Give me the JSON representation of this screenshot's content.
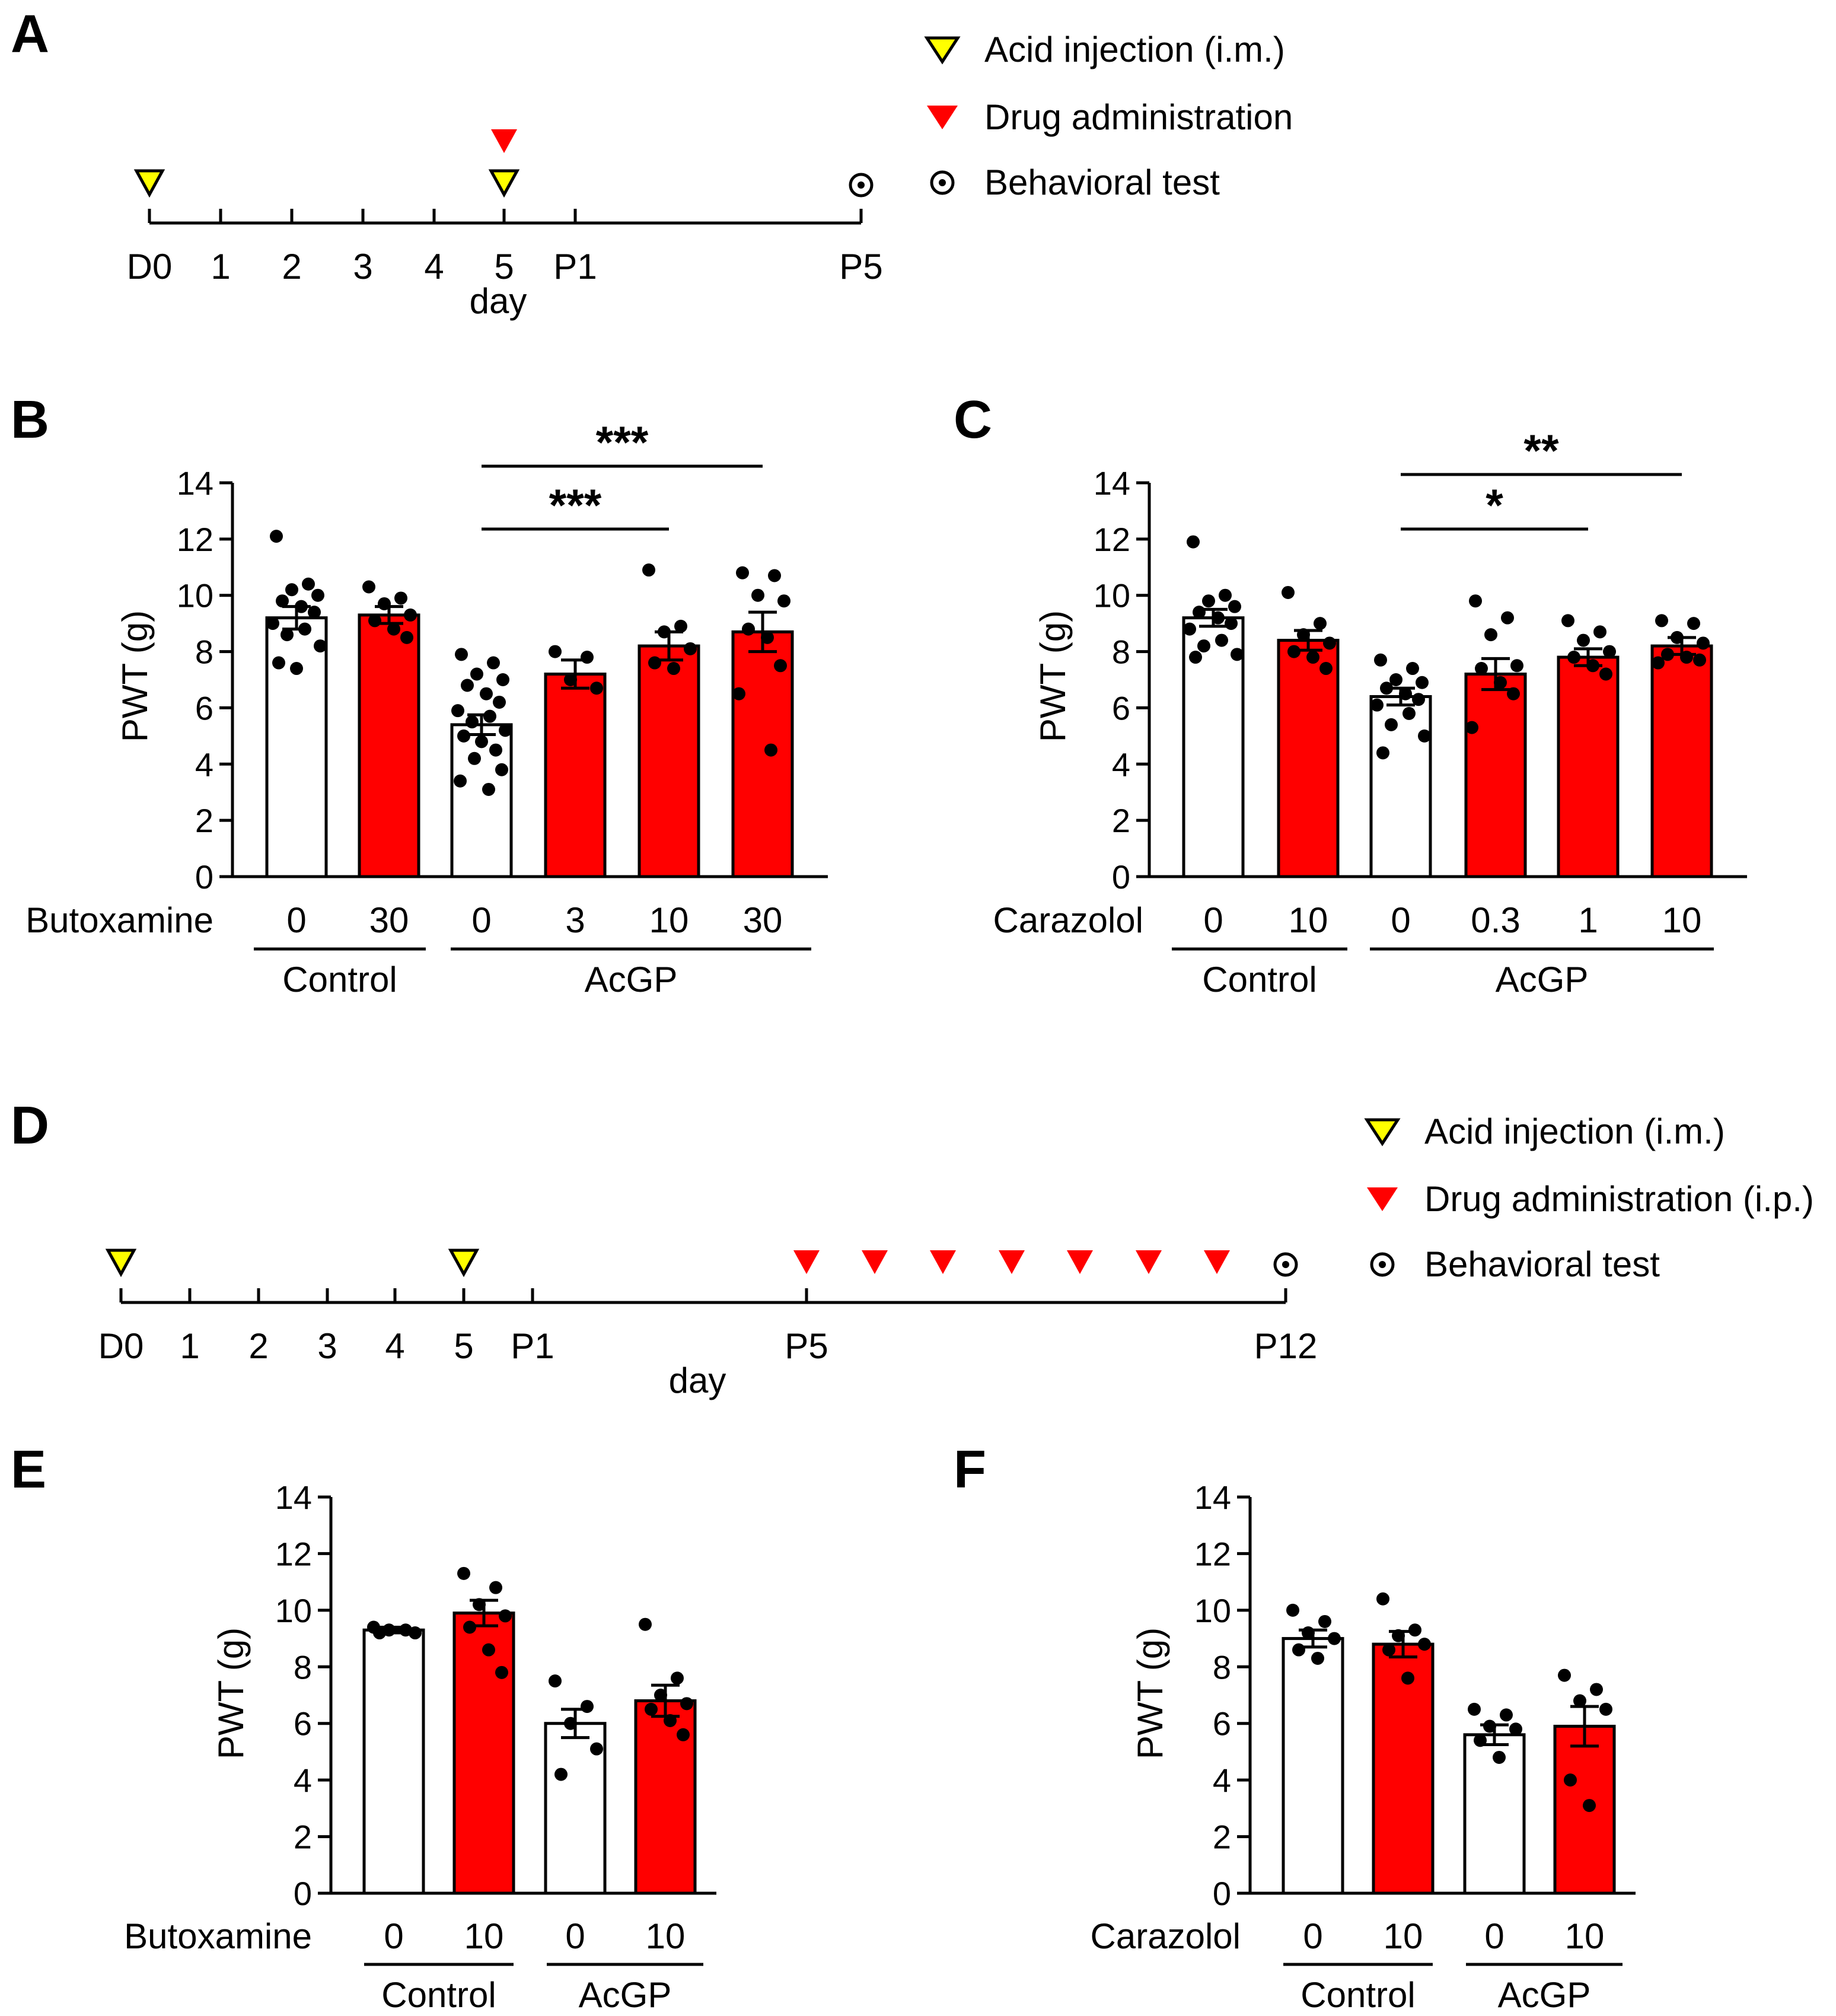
{
  "colors": {
    "red": "#ff0000",
    "yellow": "#ffff00",
    "black": "#000000",
    "white": "#ffffff"
  },
  "timeline_a": {
    "panel": "A",
    "ticks": [
      "D0",
      "1",
      "2",
      "3",
      "4",
      "5",
      "P1",
      "P5"
    ],
    "axis_label": "day",
    "acid_days": [
      "D0",
      "5"
    ],
    "drug_days": [
      "5"
    ],
    "test_days": [
      "P5"
    ],
    "legend": [
      {
        "marker": "yellow-triangle-icon",
        "label": "Acid injection (i.m.)"
      },
      {
        "marker": "red-triangle-icon",
        "label": "Drug administration"
      },
      {
        "marker": "target-icon",
        "label": "Behavioral test"
      }
    ]
  },
  "timeline_d": {
    "panel": "D",
    "ticks": [
      "D0",
      "1",
      "2",
      "3",
      "4",
      "5",
      "P1",
      "P5",
      "P12"
    ],
    "axis_label": "day",
    "acid_days": [
      "D0",
      "5"
    ],
    "drug_days": [
      "P5",
      "P6",
      "P7",
      "P8",
      "P9",
      "P10",
      "P11"
    ],
    "test_days": [
      "P12"
    ],
    "legend": [
      {
        "marker": "yellow-triangle-icon",
        "label": "Acid injection (i.m.)"
      },
      {
        "marker": "red-triangle-icon",
        "label": "Drug administration (i.p.)"
      },
      {
        "marker": "target-icon",
        "label": "Behavioral test"
      }
    ]
  },
  "chart_data": [
    {
      "panel": "B",
      "type": "bar",
      "ylabel": "PWT (g)",
      "ylim": [
        0,
        14
      ],
      "yticks": [
        "0",
        "2",
        "4",
        "6",
        "8",
        "10",
        "12",
        "14"
      ],
      "drug": "Butoxamine",
      "categories": [
        "0",
        "30",
        "0",
        "3",
        "10",
        "30"
      ],
      "groups": [
        {
          "name": "Control",
          "range": [
            0,
            1
          ]
        },
        {
          "name": "AcGP",
          "range": [
            2,
            5
          ]
        }
      ],
      "values": [
        9.2,
        9.3,
        5.4,
        7.2,
        8.2,
        8.7
      ],
      "sem": [
        0.4,
        0.3,
        0.35,
        0.5,
        0.5,
        0.7
      ],
      "fills": [
        "white",
        "red",
        "white",
        "red",
        "red",
        "red"
      ],
      "points": [
        [
          12.1,
          10.4,
          10.2,
          10.0,
          9.8,
          9.6,
          9.4,
          9.0,
          8.8,
          8.6,
          8.2,
          7.6,
          7.4
        ],
        [
          10.3,
          9.9,
          9.7,
          9.3,
          9.1,
          8.8,
          8.5
        ],
        [
          7.9,
          7.6,
          7.2,
          7.0,
          6.8,
          6.5,
          6.2,
          5.9,
          5.7,
          5.5,
          5.2,
          5.0,
          4.8,
          4.5,
          4.2,
          3.8,
          3.4,
          3.1
        ],
        [
          8.0,
          7.8,
          7.0,
          6.7
        ],
        [
          10.9,
          8.9,
          8.7,
          8.1,
          7.6,
          7.4
        ],
        [
          10.8,
          10.7,
          10.0,
          9.8,
          8.8,
          8.5,
          7.5,
          6.5,
          4.5
        ]
      ],
      "significance": [
        {
          "from": 2,
          "to": 5,
          "label": "***"
        },
        {
          "from": 2,
          "to": 4,
          "label": "***"
        }
      ]
    },
    {
      "panel": "C",
      "type": "bar",
      "ylabel": "PWT (g)",
      "ylim": [
        0,
        14
      ],
      "yticks": [
        "0",
        "2",
        "4",
        "6",
        "8",
        "10",
        "12",
        "14"
      ],
      "drug": "Carazolol",
      "categories": [
        "0",
        "10",
        "0",
        "0.3",
        "1",
        "10"
      ],
      "groups": [
        {
          "name": "Control",
          "range": [
            0,
            1
          ]
        },
        {
          "name": "AcGP",
          "range": [
            2,
            5
          ]
        }
      ],
      "values": [
        9.2,
        8.4,
        6.4,
        7.2,
        7.8,
        8.2
      ],
      "sem": [
        0.3,
        0.35,
        0.3,
        0.55,
        0.3,
        0.3
      ],
      "fills": [
        "white",
        "red",
        "white",
        "red",
        "red",
        "red"
      ],
      "points": [
        [
          11.9,
          10.0,
          9.8,
          9.6,
          9.4,
          9.2,
          9.0,
          8.8,
          8.4,
          8.2,
          7.9,
          7.8
        ],
        [
          10.1,
          9.0,
          8.6,
          8.3,
          8.0,
          7.8,
          7.4
        ],
        [
          7.7,
          7.4,
          7.0,
          6.9,
          6.7,
          6.5,
          6.3,
          6.1,
          5.8,
          5.4,
          5.0,
          4.4
        ],
        [
          9.8,
          9.2,
          8.6,
          7.5,
          7.4,
          6.9,
          6.5,
          5.3
        ],
        [
          9.1,
          8.7,
          8.4,
          8.0,
          7.8,
          7.5,
          7.2
        ],
        [
          9.1,
          9.0,
          8.5,
          8.3,
          7.9,
          7.8,
          7.7,
          7.6
        ]
      ],
      "significance": [
        {
          "from": 2,
          "to": 5,
          "label": "**"
        },
        {
          "from": 2,
          "to": 4,
          "label": "*"
        }
      ]
    },
    {
      "panel": "E",
      "type": "bar",
      "ylabel": "PWT (g)",
      "ylim": [
        0,
        14
      ],
      "yticks": [
        "0",
        "2",
        "4",
        "6",
        "8",
        "10",
        "12",
        "14"
      ],
      "drug": "Butoxamine",
      "categories": [
        "0",
        "10",
        "0",
        "10"
      ],
      "groups": [
        {
          "name": "Control",
          "range": [
            0,
            1
          ]
        },
        {
          "name": "AcGP",
          "range": [
            2,
            3
          ]
        }
      ],
      "values": [
        9.3,
        9.9,
        6.0,
        6.8
      ],
      "sem": [
        0.1,
        0.45,
        0.5,
        0.55
      ],
      "fills": [
        "white",
        "red",
        "white",
        "red"
      ],
      "points": [
        [
          9.4,
          9.3,
          9.3,
          9.2,
          9.2
        ],
        [
          11.3,
          10.8,
          10.2,
          9.8,
          9.4,
          8.6,
          7.8
        ],
        [
          7.5,
          6.6,
          6.0,
          5.1,
          4.2
        ],
        [
          9.5,
          7.6,
          7.0,
          6.7,
          6.5,
          6.1,
          5.6
        ]
      ],
      "significance": []
    },
    {
      "panel": "F",
      "type": "bar",
      "ylabel": "PWT (g)",
      "ylim": [
        0,
        14
      ],
      "yticks": [
        "0",
        "2",
        "4",
        "6",
        "8",
        "10",
        "12",
        "14"
      ],
      "drug": "Carazolol",
      "categories": [
        "0",
        "10",
        "0",
        "10"
      ],
      "groups": [
        {
          "name": "Control",
          "range": [
            0,
            1
          ]
        },
        {
          "name": "AcGP",
          "range": [
            2,
            3
          ]
        }
      ],
      "values": [
        9.0,
        8.8,
        5.6,
        5.9
      ],
      "sem": [
        0.3,
        0.45,
        0.35,
        0.7
      ],
      "fills": [
        "white",
        "red",
        "white",
        "red"
      ],
      "points": [
        [
          10.0,
          9.6,
          9.2,
          9.0,
          8.6,
          8.3
        ],
        [
          10.4,
          9.3,
          9.1,
          8.8,
          8.6,
          7.6
        ],
        [
          6.5,
          6.3,
          5.9,
          5.8,
          5.4,
          4.8
        ],
        [
          7.7,
          7.2,
          6.8,
          6.5,
          4.0,
          3.1
        ]
      ],
      "significance": []
    }
  ]
}
